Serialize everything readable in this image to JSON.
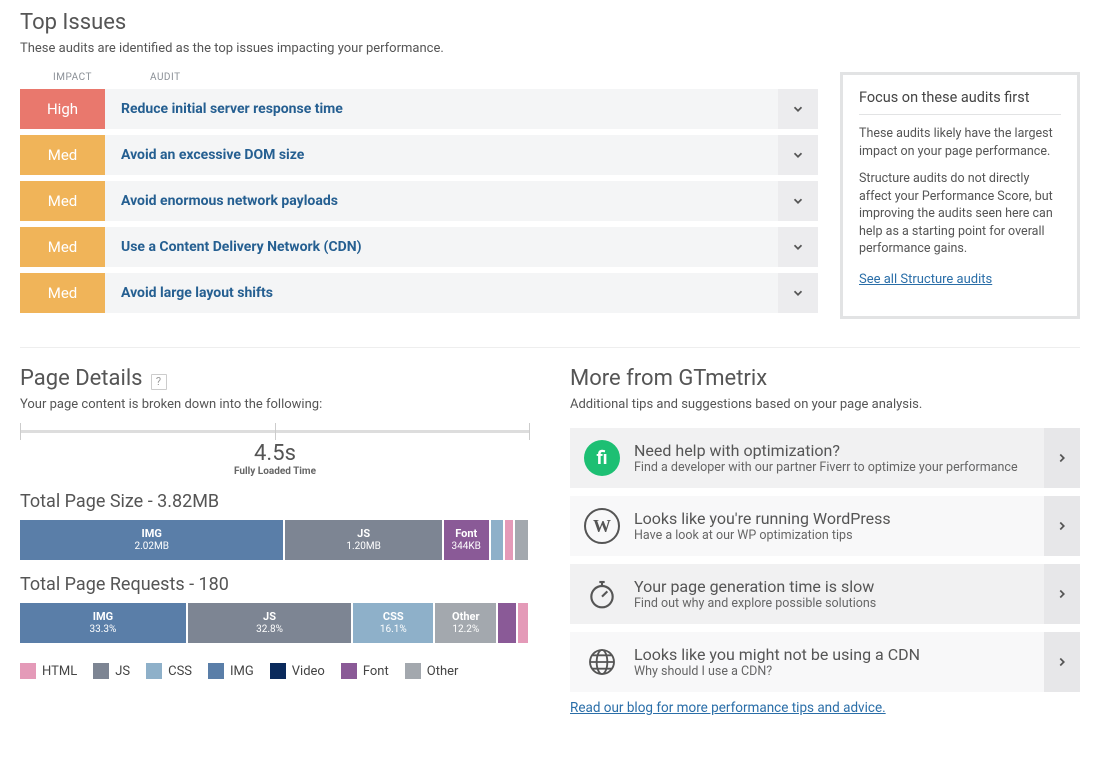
{
  "colors": {
    "html": "#e49ab8",
    "js": "#7d8593",
    "css": "#8eb0c9",
    "img": "#5a7ea8",
    "video": "#0a2a5c",
    "font": "#8a5a97",
    "other": "#a3a8ae",
    "high": "#e9786d",
    "med": "#f0b459",
    "link": "#2a6ea8",
    "fiverr": "#1dbf73"
  },
  "topIssues": {
    "title": "Top Issues",
    "subtitle": "These audits are identified as the top issues impacting your performance.",
    "headers": {
      "impact": "IMPACT",
      "audit": "AUDIT"
    },
    "rows": [
      {
        "impact": "High",
        "impactClass": "impact-high",
        "audit": "Reduce initial server response time"
      },
      {
        "impact": "Med",
        "impactClass": "impact-med",
        "audit": "Avoid an excessive DOM size"
      },
      {
        "impact": "Med",
        "impactClass": "impact-med",
        "audit": "Avoid enormous network payloads"
      },
      {
        "impact": "Med",
        "impactClass": "impact-med",
        "audit": "Use a Content Delivery Network (CDN)"
      },
      {
        "impact": "Med",
        "impactClass": "impact-med",
        "audit": "Avoid large layout shifts"
      }
    ],
    "focus": {
      "title": "Focus on these audits first",
      "p1": "These audits likely have the largest impact on your page performance.",
      "p2": "Structure audits do not directly affect your Performance Score, but improving the audits seen here can help as a starting point for overall performance gains.",
      "link": "See all Structure audits"
    }
  },
  "pageDetails": {
    "title": "Page Details",
    "subtitle": "Your page content is broken down into the following:",
    "loadTime": {
      "value": "4.5s",
      "label": "Fully Loaded Time"
    },
    "size": {
      "title": "Total Page Size - 3.82MB",
      "segments": [
        {
          "name": "IMG",
          "val": "2.02MB",
          "pct": 52.9,
          "colorKey": "img"
        },
        {
          "name": "JS",
          "val": "1.20MB",
          "pct": 31.4,
          "colorKey": "js"
        },
        {
          "name": "Font",
          "val": "344KB",
          "pct": 9.0,
          "colorKey": "font"
        },
        {
          "name": "",
          "val": "",
          "pct": 2.5,
          "colorKey": "css"
        },
        {
          "name": "",
          "val": "",
          "pct": 1.6,
          "colorKey": "html"
        },
        {
          "name": "",
          "val": "",
          "pct": 2.6,
          "colorKey": "other"
        }
      ]
    },
    "requests": {
      "title": "Total Page Requests - 180",
      "segments": [
        {
          "name": "IMG",
          "val": "33.3%",
          "pct": 33.3,
          "colorKey": "img"
        },
        {
          "name": "JS",
          "val": "32.8%",
          "pct": 32.8,
          "colorKey": "js"
        },
        {
          "name": "CSS",
          "val": "16.1%",
          "pct": 16.1,
          "colorKey": "css"
        },
        {
          "name": "Other",
          "val": "12.2%",
          "pct": 12.2,
          "colorKey": "other"
        },
        {
          "name": "",
          "val": "",
          "pct": 3.6,
          "colorKey": "font"
        },
        {
          "name": "",
          "val": "",
          "pct": 2.0,
          "colorKey": "html"
        }
      ]
    },
    "legend": [
      {
        "label": "HTML",
        "colorKey": "html"
      },
      {
        "label": "JS",
        "colorKey": "js"
      },
      {
        "label": "CSS",
        "colorKey": "css"
      },
      {
        "label": "IMG",
        "colorKey": "img"
      },
      {
        "label": "Video",
        "colorKey": "video"
      },
      {
        "label": "Font",
        "colorKey": "font"
      },
      {
        "label": "Other",
        "colorKey": "other"
      }
    ]
  },
  "more": {
    "title": "More from GTmetrix",
    "subtitle": "Additional tips and suggestions based on your page analysis.",
    "items": [
      {
        "icon": "fiverr",
        "title": "Need help with optimization?",
        "sub": "Find a developer with our partner Fiverr to optimize your performance"
      },
      {
        "icon": "wordpress",
        "title": "Looks like you're running WordPress",
        "sub": "Have a look at our WP optimization tips"
      },
      {
        "icon": "stopwatch",
        "title": "Your page generation time is slow",
        "sub": "Find out why and explore possible solutions"
      },
      {
        "icon": "globe",
        "title": "Looks like you might not be using a CDN",
        "sub": "Why should I use a CDN?"
      }
    ],
    "blogLink": "Read our blog for more performance tips and advice."
  }
}
